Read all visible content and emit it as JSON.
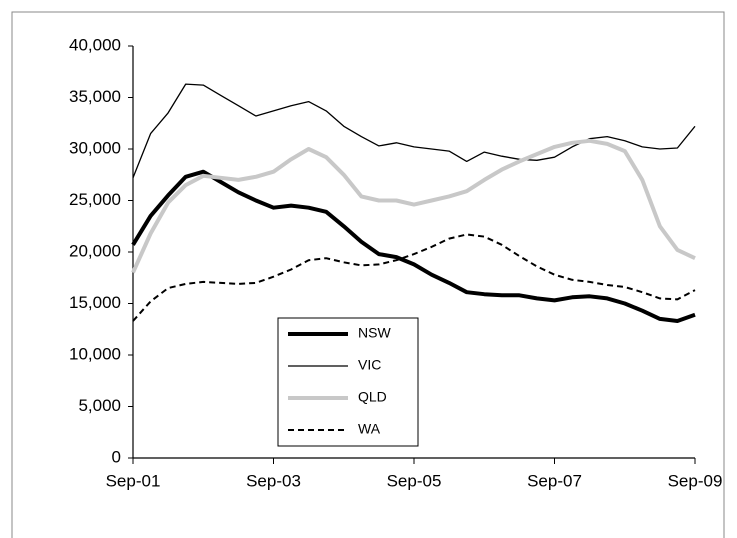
{
  "chart_data": {
    "type": "line",
    "categories": [
      "Sep-01",
      null,
      null,
      null,
      null,
      null,
      null,
      null,
      "Sep-03",
      null,
      null,
      null,
      null,
      null,
      null,
      null,
      "Sep-05",
      null,
      null,
      null,
      null,
      null,
      null,
      null,
      "Sep-07",
      null,
      null,
      null,
      null,
      null,
      null,
      null,
      "Sep-09"
    ],
    "series": [
      {
        "name": "NSW",
        "color": "#000000",
        "line_width": 4,
        "dash": false,
        "values": [
          20700,
          23500,
          25500,
          27300,
          27800,
          26800,
          25800,
          25000,
          24300,
          24500,
          24300,
          23900,
          22500,
          21000,
          19800,
          19500,
          18800,
          17800,
          17000,
          16100,
          15900,
          15800,
          15800,
          15500,
          15300,
          15600,
          15700,
          15500,
          15000,
          14300,
          13500,
          13300,
          13900
        ]
      },
      {
        "name": "VIC",
        "color": "#000000",
        "line_width": 1.3,
        "dash": false,
        "values": [
          27200,
          31500,
          33500,
          36300,
          36200,
          35200,
          34200,
          33200,
          33700,
          34200,
          34600,
          33700,
          32200,
          31200,
          30300,
          30600,
          30200,
          30000,
          29800,
          28800,
          29700,
          29300,
          29000,
          28900,
          29200,
          30200,
          31000,
          31200,
          30800,
          30200,
          30000,
          30100,
          32200
        ]
      },
      {
        "name": "QLD",
        "color": "#c8c8c8",
        "line_width": 4,
        "dash": false,
        "values": [
          18000,
          21800,
          24800,
          26500,
          27400,
          27200,
          27000,
          27300,
          27800,
          29000,
          30000,
          29200,
          27500,
          25400,
          25000,
          25000,
          24600,
          25000,
          25400,
          25900,
          27000,
          28000,
          28800,
          29500,
          30200,
          30600,
          30800,
          30500,
          29800,
          27000,
          22500,
          20200,
          19400
        ]
      },
      {
        "name": "WA",
        "color": "#000000",
        "line_width": 2,
        "dash": true,
        "values": [
          13300,
          15200,
          16500,
          16900,
          17100,
          17000,
          16900,
          17000,
          17600,
          18300,
          19200,
          19400,
          19000,
          18700,
          18800,
          19200,
          19800,
          20500,
          21300,
          21700,
          21500,
          20700,
          19600,
          18600,
          17800,
          17300,
          17100,
          16800,
          16600,
          16100,
          15500,
          15400,
          16300
        ]
      }
    ],
    "ylim": [
      0,
      40000
    ],
    "yticks": [
      0,
      {
        "value": 5000,
        "label": "5,000"
      },
      {
        "value": 10000,
        "label": "10,000"
      },
      {
        "value": 15000,
        "label": "15,000"
      },
      {
        "value": 20000,
        "label": "20,000"
      },
      {
        "value": 25000,
        "label": "25,000"
      },
      {
        "value": 30000,
        "label": "30,000"
      },
      {
        "value": 35000,
        "label": "35,000"
      },
      {
        "value": 40000,
        "label": "40,000"
      }
    ],
    "grid": false,
    "legend": "bottom-center"
  }
}
